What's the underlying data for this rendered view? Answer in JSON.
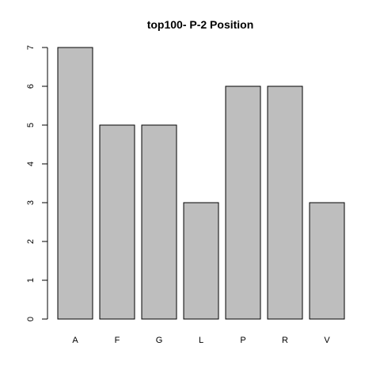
{
  "chart_data": {
    "type": "bar",
    "title": "top100- P-2 Position",
    "xlabel": "",
    "ylabel": "",
    "categories": [
      "A",
      "F",
      "G",
      "L",
      "P",
      "R",
      "V"
    ],
    "values": [
      7,
      5,
      5,
      3,
      6,
      6,
      3
    ],
    "ylim": [
      0,
      7
    ],
    "yticks": [
      0,
      1,
      2,
      3,
      4,
      5,
      6,
      7
    ],
    "grid": false,
    "legend": "none",
    "bar_color": "#bebebe",
    "bar_edge_color": "#000000"
  }
}
